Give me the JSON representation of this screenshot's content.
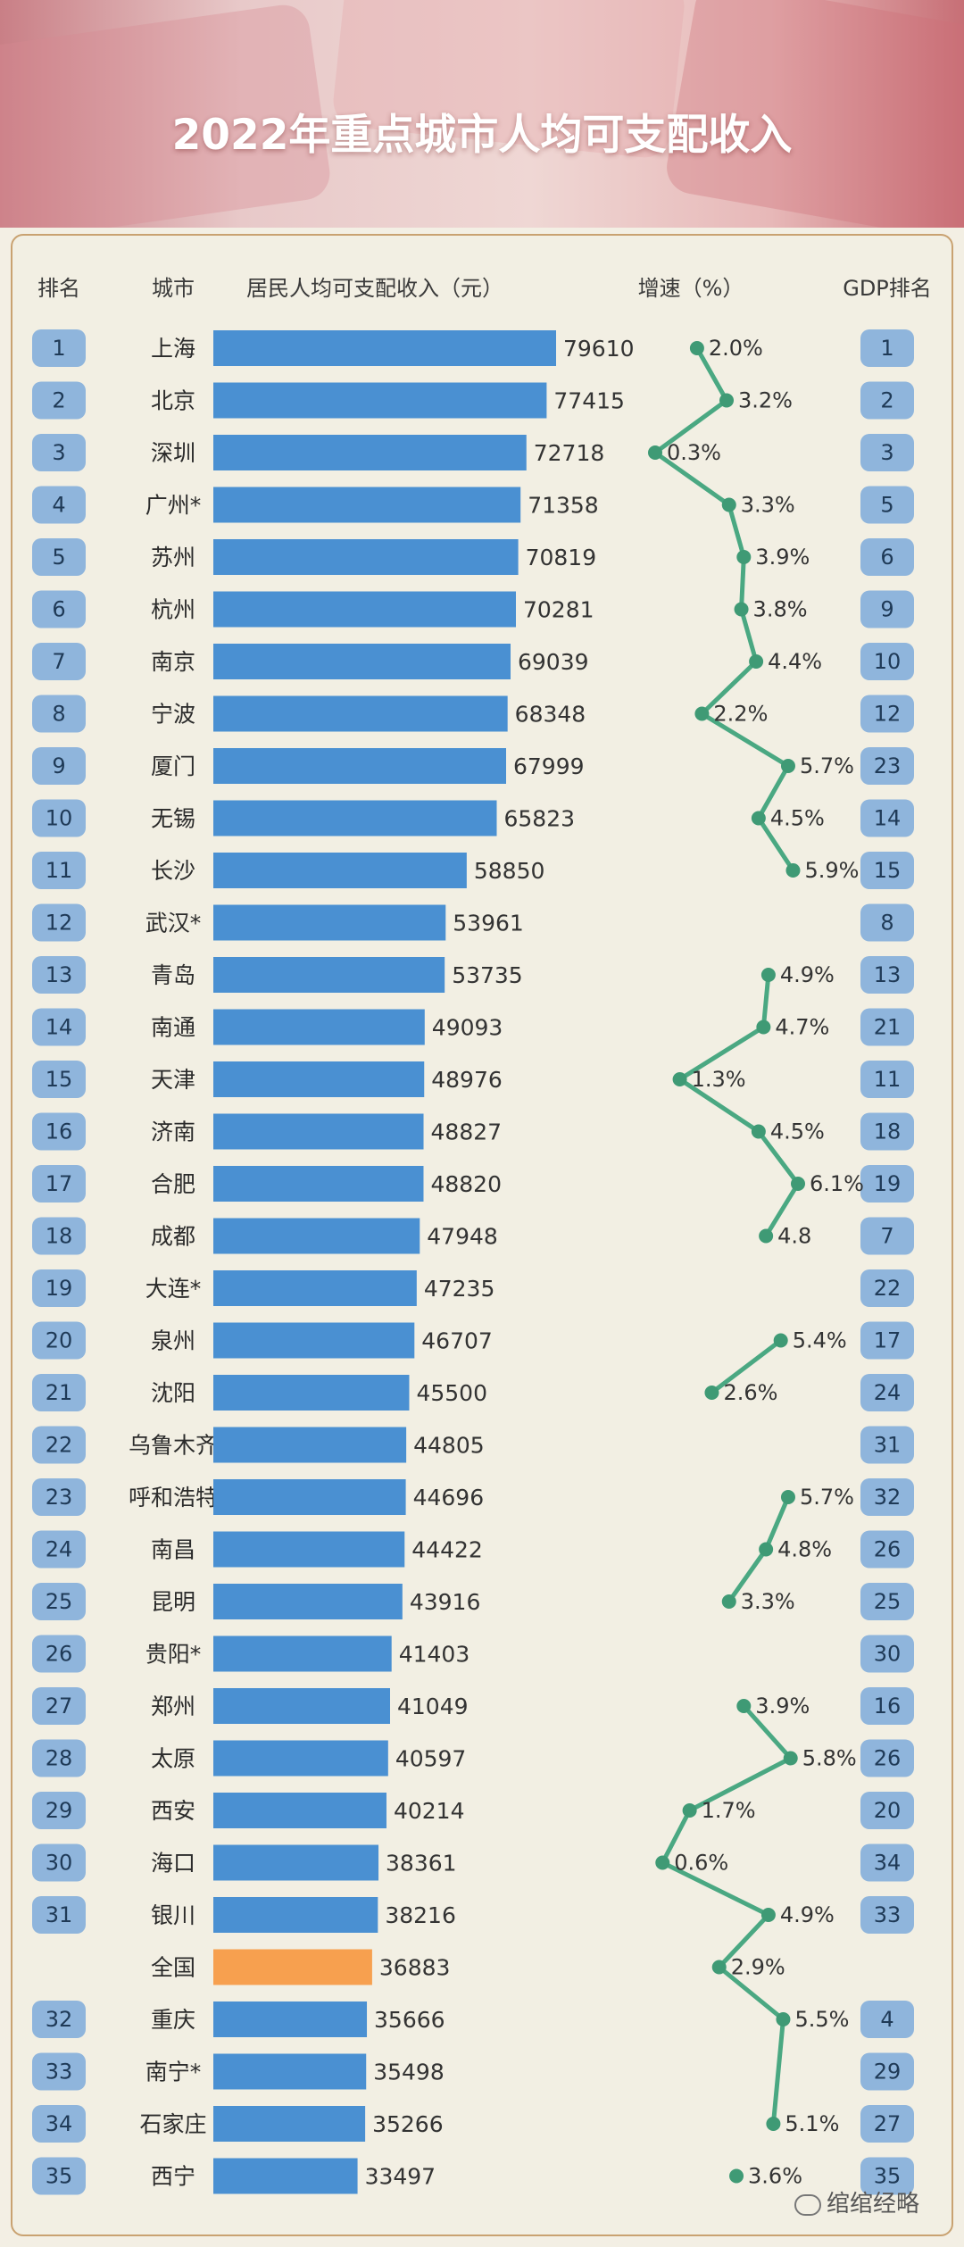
{
  "title": "2022年重点城市人均可支配收入",
  "headers": {
    "rank": "排名",
    "city": "城市",
    "income": "居民人均可支配收入（元）",
    "growth": "增速（%）",
    "gdp_rank": "GDP排名"
  },
  "colors": {
    "bar": "#4a90d2",
    "bar_highlight": "#f7a04f",
    "badge": "#8fb5dc",
    "growth_line": "#4aa882",
    "growth_dot": "#3f9a75"
  },
  "watermark": "绾绾经略",
  "chart_data": {
    "type": "bar",
    "rows": [
      {
        "rank": "1",
        "city": "上海",
        "income": 79610,
        "growth": "2.0%",
        "gdp_rank": "1"
      },
      {
        "rank": "2",
        "city": "北京",
        "income": 77415,
        "growth": "3.2%",
        "gdp_rank": "2"
      },
      {
        "rank": "3",
        "city": "深圳",
        "income": 72718,
        "growth": "0.3%",
        "gdp_rank": "3"
      },
      {
        "rank": "4",
        "city": "广州*",
        "income": 71358,
        "growth": "3.3%",
        "gdp_rank": "5"
      },
      {
        "rank": "5",
        "city": "苏州",
        "income": 70819,
        "growth": "3.9%",
        "gdp_rank": "6"
      },
      {
        "rank": "6",
        "city": "杭州",
        "income": 70281,
        "growth": "3.8%",
        "gdp_rank": "9"
      },
      {
        "rank": "7",
        "city": "南京",
        "income": 69039,
        "growth": "4.4%",
        "gdp_rank": "10"
      },
      {
        "rank": "8",
        "city": "宁波",
        "income": 68348,
        "growth": "2.2%",
        "gdp_rank": "12"
      },
      {
        "rank": "9",
        "city": "厦门",
        "income": 67999,
        "growth": "5.7%",
        "gdp_rank": "23"
      },
      {
        "rank": "10",
        "city": "无锡",
        "income": 65823,
        "growth": "4.5%",
        "gdp_rank": "14"
      },
      {
        "rank": "11",
        "city": "长沙",
        "income": 58850,
        "growth": "5.9%",
        "gdp_rank": "15"
      },
      {
        "rank": "12",
        "city": "武汉*",
        "income": 53961,
        "growth": "",
        "gdp_rank": "8"
      },
      {
        "rank": "13",
        "city": "青岛",
        "income": 53735,
        "growth": "4.9%",
        "gdp_rank": "13"
      },
      {
        "rank": "14",
        "city": "南通",
        "income": 49093,
        "growth": "4.7%",
        "gdp_rank": "21"
      },
      {
        "rank": "15",
        "city": "天津",
        "income": 48976,
        "growth": "1.3%",
        "gdp_rank": "11"
      },
      {
        "rank": "16",
        "city": "济南",
        "income": 48827,
        "growth": "4.5%",
        "gdp_rank": "18"
      },
      {
        "rank": "17",
        "city": "合肥",
        "income": 48820,
        "growth": "6.1%",
        "gdp_rank": "19"
      },
      {
        "rank": "18",
        "city": "成都",
        "income": 47948,
        "growth": "4.8",
        "gdp_rank": "7"
      },
      {
        "rank": "19",
        "city": "大连*",
        "income": 47235,
        "growth": "",
        "gdp_rank": "22"
      },
      {
        "rank": "20",
        "city": "泉州",
        "income": 46707,
        "growth": "5.4%",
        "gdp_rank": "17"
      },
      {
        "rank": "21",
        "city": "沈阳",
        "income": 45500,
        "growth": "2.6%",
        "gdp_rank": "24"
      },
      {
        "rank": "22",
        "city": "乌鲁木齐",
        "income": 44805,
        "growth": "",
        "gdp_rank": "31"
      },
      {
        "rank": "23",
        "city": "呼和浩特",
        "income": 44696,
        "growth": "5.7%",
        "gdp_rank": "32"
      },
      {
        "rank": "24",
        "city": "南昌",
        "income": 44422,
        "growth": "4.8%",
        "gdp_rank": "26"
      },
      {
        "rank": "25",
        "city": "昆明",
        "income": 43916,
        "growth": "3.3%",
        "gdp_rank": "25"
      },
      {
        "rank": "26",
        "city": "贵阳*",
        "income": 41403,
        "growth": "",
        "gdp_rank": "30"
      },
      {
        "rank": "27",
        "city": "郑州",
        "income": 41049,
        "growth": "3.9%",
        "gdp_rank": "16"
      },
      {
        "rank": "28",
        "city": "太原",
        "income": 40597,
        "growth": "5.8%",
        "gdp_rank": "26"
      },
      {
        "rank": "29",
        "city": "西安",
        "income": 40214,
        "growth": "1.7%",
        "gdp_rank": "20"
      },
      {
        "rank": "30",
        "city": "海口",
        "income": 38361,
        "growth": "0.6%",
        "gdp_rank": "34"
      },
      {
        "rank": "31",
        "city": "银川",
        "income": 38216,
        "growth": "4.9%",
        "gdp_rank": "33"
      },
      {
        "rank": "",
        "city": "全国",
        "income": 36883,
        "growth": "2.9%",
        "gdp_rank": "",
        "highlight": true
      },
      {
        "rank": "32",
        "city": "重庆",
        "income": 35666,
        "growth": "5.5%",
        "gdp_rank": "4"
      },
      {
        "rank": "33",
        "city": "南宁*",
        "income": 35498,
        "growth": "",
        "gdp_rank": "29"
      },
      {
        "rank": "34",
        "city": "石家庄",
        "income": 35266,
        "growth": "5.1%",
        "gdp_rank": "27"
      },
      {
        "rank": "35",
        "city": "西宁",
        "income": 33497,
        "growth": "3.6%",
        "gdp_rank": "35"
      }
    ],
    "growth_segments": [
      [
        0,
        10
      ],
      [
        12,
        17
      ],
      [
        19,
        20
      ],
      [
        22,
        24
      ],
      [
        26,
        34
      ],
      [
        35,
        36
      ]
    ]
  }
}
